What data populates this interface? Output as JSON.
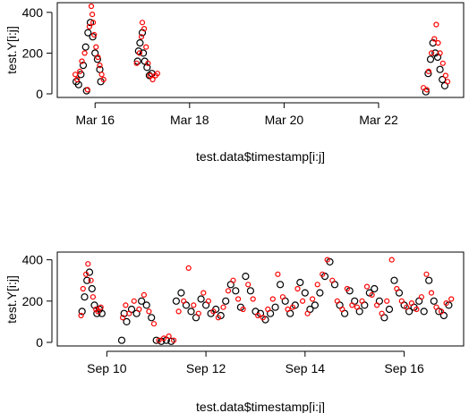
{
  "chart_data": [
    {
      "type": "scatter",
      "title": "",
      "xlabel": "test.data$timestamp[i:j]",
      "ylabel": "test.Y[i:j]",
      "x_unit": "day of March",
      "xlim": [
        15.2,
        23.8
      ],
      "ylim": [
        0,
        430
      ],
      "x_ticks": [
        {
          "value": 16,
          "label": "Mar 16"
        },
        {
          "value": 18,
          "label": "Mar 18"
        },
        {
          "value": 20,
          "label": "Mar 20"
        },
        {
          "value": 22,
          "label": "Mar 22"
        }
      ],
      "y_ticks": [
        {
          "value": 0,
          "label": "0"
        },
        {
          "value": 200,
          "label": "200"
        },
        {
          "value": 400,
          "label": "400"
        }
      ],
      "grid": false,
      "legend": "none",
      "colors": {
        "black": "#000000",
        "red": "#ff0000"
      },
      "series": [
        {
          "color": "black",
          "points": [
            [
              15.6,
              60
            ],
            [
              15.65,
              45
            ],
            [
              15.7,
              95
            ],
            [
              15.75,
              140
            ],
            [
              15.8,
              230
            ],
            [
              15.82,
              15
            ],
            [
              15.85,
              300
            ],
            [
              15.9,
              350
            ],
            [
              15.95,
              280
            ],
            [
              16.0,
              200
            ],
            [
              16.05,
              170
            ],
            [
              16.1,
              120
            ],
            [
              16.12,
              60
            ],
            [
              16.9,
              160
            ],
            [
              16.92,
              210
            ],
            [
              16.95,
              250
            ],
            [
              17.0,
              300
            ],
            [
              17.02,
              200
            ],
            [
              17.05,
              160
            ],
            [
              17.1,
              130
            ],
            [
              17.15,
              90
            ],
            [
              17.2,
              100
            ],
            [
              23.0,
              10
            ],
            [
              23.05,
              100
            ],
            [
              23.1,
              170
            ],
            [
              23.15,
              250
            ],
            [
              23.2,
              200
            ],
            [
              23.25,
              180
            ],
            [
              23.3,
              120
            ],
            [
              23.35,
              70
            ],
            [
              23.4,
              40
            ]
          ]
        },
        {
          "color": "red",
          "points": [
            [
              15.58,
              95
            ],
            [
              15.62,
              70
            ],
            [
              15.68,
              110
            ],
            [
              15.72,
              160
            ],
            [
              15.78,
              200
            ],
            [
              15.84,
              20
            ],
            [
              15.88,
              330
            ],
            [
              15.92,
              430
            ],
            [
              15.94,
              390
            ],
            [
              15.96,
              350
            ],
            [
              15.98,
              290
            ],
            [
              16.02,
              230
            ],
            [
              16.06,
              180
            ],
            [
              16.1,
              140
            ],
            [
              16.14,
              95
            ],
            [
              16.18,
              70
            ],
            [
              16.88,
              150
            ],
            [
              16.94,
              200
            ],
            [
              16.98,
              280
            ],
            [
              17.0,
              350
            ],
            [
              17.04,
              320
            ],
            [
              17.08,
              230
            ],
            [
              17.12,
              150
            ],
            [
              17.16,
              90
            ],
            [
              17.22,
              70
            ],
            [
              17.28,
              90
            ],
            [
              17.32,
              100
            ],
            [
              22.95,
              30
            ],
            [
              23.02,
              20
            ],
            [
              23.06,
              110
            ],
            [
              23.12,
              200
            ],
            [
              23.18,
              270
            ],
            [
              23.22,
              340
            ],
            [
              23.26,
              250
            ],
            [
              23.3,
              200
            ],
            [
              23.36,
              150
            ],
            [
              23.42,
              90
            ],
            [
              23.46,
              60
            ]
          ]
        }
      ]
    },
    {
      "type": "scatter",
      "title": "",
      "xlabel": "test.data$timestamp[i:j]",
      "ylabel": "test.Y[i:j]",
      "x_unit": "day of September",
      "xlim": [
        9.0,
        17.2
      ],
      "ylim": [
        0,
        420
      ],
      "x_ticks": [
        {
          "value": 10,
          "label": "Sep 10"
        },
        {
          "value": 12,
          "label": "Sep 12"
        },
        {
          "value": 14,
          "label": "Sep 14"
        },
        {
          "value": 16,
          "label": "Sep 16"
        }
      ],
      "y_ticks": [
        {
          "value": 0,
          "label": "0"
        },
        {
          "value": 200,
          "label": "200"
        },
        {
          "value": 400,
          "label": "400"
        }
      ],
      "grid": false,
      "legend": "none",
      "colors": {
        "black": "#000000",
        "red": "#ff0000"
      },
      "series": [
        {
          "color": "black",
          "points": [
            [
              9.5,
              150
            ],
            [
              9.55,
              220
            ],
            [
              9.6,
              300
            ],
            [
              9.65,
              340
            ],
            [
              9.7,
              260
            ],
            [
              9.75,
              180
            ],
            [
              9.8,
              140
            ],
            [
              9.85,
              160
            ],
            [
              9.9,
              140
            ],
            [
              10.3,
              10
            ],
            [
              10.35,
              140
            ],
            [
              10.4,
              100
            ],
            [
              10.5,
              160
            ],
            [
              10.6,
              140
            ],
            [
              10.7,
              200
            ],
            [
              10.8,
              180
            ],
            [
              10.9,
              120
            ],
            [
              11.0,
              10
            ],
            [
              11.1,
              5
            ],
            [
              11.2,
              10
            ],
            [
              11.3,
              5
            ],
            [
              11.4,
              200
            ],
            [
              11.5,
              240
            ],
            [
              11.6,
              180
            ],
            [
              11.7,
              150
            ],
            [
              11.8,
              120
            ],
            [
              11.9,
              210
            ],
            [
              12.0,
              180
            ],
            [
              12.1,
              140
            ],
            [
              12.2,
              160
            ],
            [
              12.3,
              130
            ],
            [
              12.4,
              200
            ],
            [
              12.5,
              280
            ],
            [
              12.6,
              250
            ],
            [
              12.7,
              170
            ],
            [
              12.8,
              320
            ],
            [
              12.9,
              250
            ],
            [
              13.0,
              150
            ],
            [
              13.1,
              140
            ],
            [
              13.2,
              110
            ],
            [
              13.3,
              140
            ],
            [
              13.4,
              170
            ],
            [
              13.5,
              280
            ],
            [
              13.6,
              200
            ],
            [
              13.7,
              140
            ],
            [
              13.8,
              180
            ],
            [
              13.9,
              290
            ],
            [
              14.0,
              240
            ],
            [
              14.1,
              160
            ],
            [
              14.2,
              180
            ],
            [
              14.3,
              240
            ],
            [
              14.4,
              320
            ],
            [
              14.5,
              390
            ],
            [
              14.6,
              280
            ],
            [
              14.7,
              180
            ],
            [
              14.8,
              140
            ],
            [
              14.9,
              250
            ],
            [
              15.0,
              200
            ],
            [
              15.1,
              150
            ],
            [
              15.2,
              180
            ],
            [
              15.3,
              240
            ],
            [
              15.4,
              260
            ],
            [
              15.5,
              200
            ],
            [
              15.6,
              120
            ],
            [
              15.7,
              160
            ],
            [
              15.8,
              300
            ],
            [
              15.9,
              240
            ],
            [
              16.0,
              180
            ],
            [
              16.1,
              150
            ],
            [
              16.2,
              170
            ],
            [
              16.3,
              200
            ],
            [
              16.4,
              150
            ],
            [
              16.5,
              300
            ],
            [
              16.6,
              200
            ],
            [
              16.7,
              150
            ],
            [
              16.8,
              130
            ],
            [
              16.9,
              180
            ]
          ]
        },
        {
          "color": "red",
          "points": [
            [
              9.48,
              130
            ],
            [
              9.52,
              260
            ],
            [
              9.58,
              330
            ],
            [
              9.62,
              380
            ],
            [
              9.68,
              300
            ],
            [
              9.72,
              220
            ],
            [
              9.78,
              160
            ],
            [
              9.82,
              150
            ],
            [
              9.88,
              170
            ],
            [
              10.32,
              120
            ],
            [
              10.38,
              180
            ],
            [
              10.45,
              140
            ],
            [
              10.55,
              200
            ],
            [
              10.65,
              160
            ],
            [
              10.75,
              230
            ],
            [
              10.85,
              150
            ],
            [
              10.95,
              90
            ],
            [
              11.05,
              10
            ],
            [
              11.15,
              20
            ],
            [
              11.25,
              30
            ],
            [
              11.35,
              10
            ],
            [
              11.45,
              150
            ],
            [
              11.55,
              200
            ],
            [
              11.65,
              360
            ],
            [
              11.75,
              180
            ],
            [
              11.85,
              140
            ],
            [
              11.95,
              240
            ],
            [
              12.05,
              200
            ],
            [
              12.15,
              150
            ],
            [
              12.25,
              120
            ],
            [
              12.35,
              170
            ],
            [
              12.45,
              250
            ],
            [
              12.55,
              300
            ],
            [
              12.65,
              210
            ],
            [
              12.75,
              160
            ],
            [
              12.85,
              280
            ],
            [
              12.95,
              210
            ],
            [
              13.05,
              130
            ],
            [
              13.15,
              120
            ],
            [
              13.25,
              160
            ],
            [
              13.35,
              210
            ],
            [
              13.45,
              330
            ],
            [
              13.55,
              220
            ],
            [
              13.65,
              160
            ],
            [
              13.75,
              170
            ],
            [
              13.85,
              260
            ],
            [
              13.95,
              200
            ],
            [
              14.05,
              140
            ],
            [
              14.15,
              210
            ],
            [
              14.25,
              280
            ],
            [
              14.35,
              330
            ],
            [
              14.45,
              400
            ],
            [
              14.55,
              300
            ],
            [
              14.65,
              200
            ],
            [
              14.75,
              160
            ],
            [
              14.85,
              260
            ],
            [
              14.95,
              180
            ],
            [
              15.05,
              170
            ],
            [
              15.15,
              200
            ],
            [
              15.25,
              270
            ],
            [
              15.35,
              230
            ],
            [
              15.45,
              180
            ],
            [
              15.55,
              140
            ],
            [
              15.65,
              200
            ],
            [
              15.75,
              400
            ],
            [
              15.85,
              260
            ],
            [
              15.95,
              200
            ],
            [
              16.05,
              170
            ],
            [
              16.15,
              190
            ],
            [
              16.25,
              160
            ],
            [
              16.35,
              220
            ],
            [
              16.45,
              330
            ],
            [
              16.55,
              240
            ],
            [
              16.65,
              170
            ],
            [
              16.75,
              150
            ],
            [
              16.85,
              190
            ],
            [
              16.95,
              210
            ]
          ]
        }
      ]
    }
  ]
}
